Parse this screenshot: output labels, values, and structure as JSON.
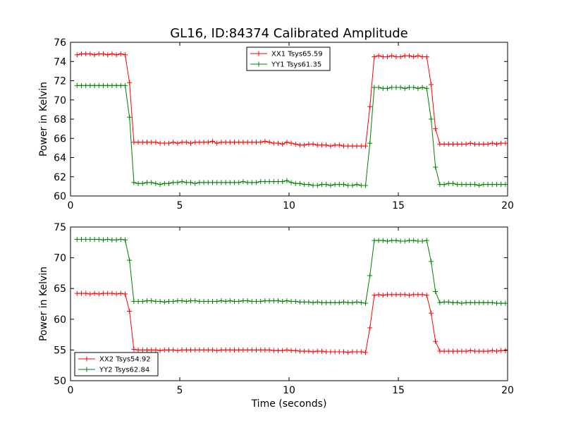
{
  "chart_data": {
    "type": "line",
    "title": "GL16, ID:84374 Calibrated Amplitude",
    "panels": [
      {
        "xlabel": "",
        "ylabel": "Power in Kelvin",
        "xlim": [
          0,
          20
        ],
        "ylim": [
          60,
          76
        ],
        "xticks": [
          0,
          5,
          10,
          15,
          20
        ],
        "yticks": [
          60,
          62,
          64,
          66,
          68,
          70,
          72,
          74,
          76
        ],
        "legend_position": "top-center",
        "x": [
          0.3,
          0.5,
          0.7,
          0.9,
          1.1,
          1.3,
          1.5,
          1.7,
          1.9,
          2.1,
          2.3,
          2.5,
          2.7,
          2.9,
          3.1,
          3.3,
          3.5,
          3.7,
          3.9,
          4.1,
          4.3,
          4.5,
          4.7,
          4.9,
          5.1,
          5.3,
          5.5,
          5.7,
          5.9,
          6.1,
          6.3,
          6.5,
          6.7,
          6.9,
          7.1,
          7.3,
          7.5,
          7.7,
          7.9,
          8.1,
          8.3,
          8.5,
          8.7,
          8.9,
          9.1,
          9.3,
          9.5,
          9.7,
          9.9,
          10.1,
          10.3,
          10.5,
          10.7,
          10.9,
          11.1,
          11.3,
          11.5,
          11.7,
          11.9,
          12.1,
          12.3,
          12.5,
          12.7,
          12.9,
          13.1,
          13.3,
          13.5,
          13.7,
          13.9,
          14.1,
          14.3,
          14.5,
          14.7,
          14.9,
          15.1,
          15.3,
          15.5,
          15.7,
          15.9,
          16.1,
          16.3,
          16.5,
          16.7,
          16.9,
          17.1,
          17.3,
          17.5,
          17.7,
          17.9,
          18.1,
          18.3,
          18.5,
          18.7,
          18.9,
          19.1,
          19.3,
          19.5,
          19.7,
          19.9
        ],
        "series": [
          {
            "name": "XX1 Tsys65.59",
            "color": "#ff0000",
            "values": [
              74.7,
              74.8,
              74.8,
              74.8,
              74.7,
              74.8,
              74.8,
              74.7,
              74.8,
              74.7,
              74.8,
              74.7,
              71.8,
              65.6,
              65.6,
              65.6,
              65.6,
              65.6,
              65.6,
              65.5,
              65.5,
              65.5,
              65.6,
              65.5,
              65.6,
              65.6,
              65.5,
              65.6,
              65.6,
              65.6,
              65.6,
              65.7,
              65.5,
              65.6,
              65.6,
              65.6,
              65.6,
              65.6,
              65.6,
              65.6,
              65.6,
              65.6,
              65.6,
              65.7,
              65.6,
              65.5,
              65.5,
              65.4,
              65.6,
              65.5,
              65.4,
              65.3,
              65.3,
              65.4,
              65.4,
              65.3,
              65.3,
              65.3,
              65.2,
              65.3,
              65.3,
              65.2,
              65.2,
              65.2,
              65.2,
              65.2,
              65.2,
              69.3,
              74.5,
              74.6,
              74.5,
              74.5,
              74.6,
              74.5,
              74.5,
              74.6,
              74.6,
              74.5,
              74.6,
              74.5,
              74.5,
              71.6,
              67.0,
              65.4,
              65.4,
              65.4,
              65.4,
              65.4,
              65.4,
              65.4,
              65.5,
              65.4,
              65.4,
              65.4,
              65.4,
              65.5,
              65.4,
              65.5,
              65.5
            ]
          },
          {
            "name": "YY1 Tsys61.35",
            "color": "#008000",
            "values": [
              71.5,
              71.5,
              71.5,
              71.5,
              71.5,
              71.5,
              71.5,
              71.5,
              71.5,
              71.5,
              71.5,
              71.5,
              68.2,
              61.4,
              61.3,
              61.3,
              61.4,
              61.4,
              61.3,
              61.2,
              61.3,
              61.3,
              61.4,
              61.4,
              61.5,
              61.4,
              61.4,
              61.3,
              61.4,
              61.4,
              61.4,
              61.4,
              61.4,
              61.4,
              61.4,
              61.4,
              61.4,
              61.4,
              61.5,
              61.4,
              61.4,
              61.4,
              61.5,
              61.5,
              61.5,
              61.5,
              61.5,
              61.5,
              61.6,
              61.4,
              61.3,
              61.3,
              61.2,
              61.2,
              61.1,
              61.1,
              61.2,
              61.2,
              61.1,
              61.2,
              61.2,
              61.2,
              61.1,
              61.1,
              61.2,
              61.1,
              61.1,
              65.5,
              71.3,
              71.3,
              71.2,
              71.2,
              71.3,
              71.3,
              71.3,
              71.2,
              71.3,
              71.3,
              71.2,
              71.3,
              71.2,
              68.0,
              63.0,
              61.2,
              61.2,
              61.3,
              61.3,
              61.2,
              61.2,
              61.2,
              61.2,
              61.2,
              61.1,
              61.2,
              61.2,
              61.2,
              61.2,
              61.2,
              61.2
            ]
          }
        ]
      },
      {
        "xlabel": "Time (seconds)",
        "ylabel": "Power in Kelvin",
        "xlim": [
          0,
          20
        ],
        "ylim": [
          50,
          75
        ],
        "xticks": [
          0,
          5,
          10,
          15,
          20
        ],
        "yticks": [
          50,
          55,
          60,
          65,
          70,
          75
        ],
        "legend_position": "bottom-left",
        "x": [
          0.3,
          0.5,
          0.7,
          0.9,
          1.1,
          1.3,
          1.5,
          1.7,
          1.9,
          2.1,
          2.3,
          2.5,
          2.7,
          2.9,
          3.1,
          3.3,
          3.5,
          3.7,
          3.9,
          4.1,
          4.3,
          4.5,
          4.7,
          4.9,
          5.1,
          5.3,
          5.5,
          5.7,
          5.9,
          6.1,
          6.3,
          6.5,
          6.7,
          6.9,
          7.1,
          7.3,
          7.5,
          7.7,
          7.9,
          8.1,
          8.3,
          8.5,
          8.7,
          8.9,
          9.1,
          9.3,
          9.5,
          9.7,
          9.9,
          10.1,
          10.3,
          10.5,
          10.7,
          10.9,
          11.1,
          11.3,
          11.5,
          11.7,
          11.9,
          12.1,
          12.3,
          12.5,
          12.7,
          12.9,
          13.1,
          13.3,
          13.5,
          13.7,
          13.9,
          14.1,
          14.3,
          14.5,
          14.7,
          14.9,
          15.1,
          15.3,
          15.5,
          15.7,
          15.9,
          16.1,
          16.3,
          16.5,
          16.7,
          16.9,
          17.1,
          17.3,
          17.5,
          17.7,
          17.9,
          18.1,
          18.3,
          18.5,
          18.7,
          18.9,
          19.1,
          19.3,
          19.5,
          19.7,
          19.9
        ],
        "series": [
          {
            "name": "XX2 Tsys54.92",
            "color": "#ff0000",
            "values": [
              64.2,
              64.2,
              64.2,
              64.1,
              64.2,
              64.1,
              64.2,
              64.2,
              64.2,
              64.1,
              64.2,
              64.1,
              61.3,
              55.1,
              55.0,
              55.0,
              55.0,
              55.0,
              55.0,
              54.9,
              55.0,
              55.0,
              55.0,
              54.9,
              55.0,
              55.0,
              55.0,
              55.0,
              55.0,
              55.0,
              55.0,
              55.0,
              54.9,
              55.0,
              55.0,
              55.0,
              55.0,
              55.0,
              55.0,
              55.0,
              55.0,
              55.0,
              55.0,
              55.0,
              55.0,
              54.9,
              54.9,
              54.9,
              55.0,
              54.9,
              54.9,
              54.8,
              54.8,
              54.8,
              54.7,
              54.8,
              54.8,
              54.7,
              54.7,
              54.7,
              54.7,
              54.7,
              54.6,
              54.7,
              54.7,
              54.7,
              54.6,
              58.6,
              63.9,
              64.0,
              63.9,
              64.0,
              64.0,
              64.0,
              64.0,
              64.0,
              63.9,
              64.0,
              64.0,
              64.0,
              63.9,
              61.0,
              56.4,
              54.8,
              54.8,
              54.8,
              54.8,
              54.8,
              54.8,
              54.8,
              54.9,
              54.8,
              54.8,
              54.8,
              54.8,
              54.9,
              54.8,
              54.9,
              54.9
            ]
          },
          {
            "name": "YY2 Tsys62.84",
            "color": "#008000",
            "values": [
              73.0,
              73.0,
              73.0,
              73.0,
              73.0,
              73.0,
              72.9,
              73.0,
              72.9,
              72.9,
              73.0,
              72.9,
              69.6,
              62.9,
              62.9,
              62.9,
              63.0,
              63.0,
              62.9,
              62.9,
              62.8,
              62.9,
              62.9,
              63.0,
              63.0,
              62.9,
              63.0,
              63.0,
              62.9,
              62.9,
              62.9,
              62.9,
              62.9,
              63.0,
              62.9,
              63.0,
              62.9,
              62.9,
              63.0,
              63.0,
              62.9,
              62.9,
              62.9,
              63.0,
              63.0,
              63.0,
              63.0,
              62.9,
              63.0,
              62.9,
              62.9,
              62.8,
              62.8,
              62.8,
              62.7,
              62.8,
              62.7,
              62.7,
              62.7,
              62.7,
              62.7,
              62.8,
              62.7,
              62.7,
              62.8,
              62.7,
              62.6,
              67.1,
              72.8,
              72.8,
              72.8,
              72.7,
              72.8,
              72.8,
              72.7,
              72.7,
              72.8,
              72.8,
              72.7,
              72.7,
              72.8,
              69.4,
              64.5,
              62.7,
              62.8,
              62.8,
              62.7,
              62.7,
              62.6,
              62.7,
              62.7,
              62.7,
              62.7,
              62.7,
              62.7,
              62.7,
              62.6,
              62.6,
              62.6
            ]
          }
        ]
      }
    ]
  }
}
